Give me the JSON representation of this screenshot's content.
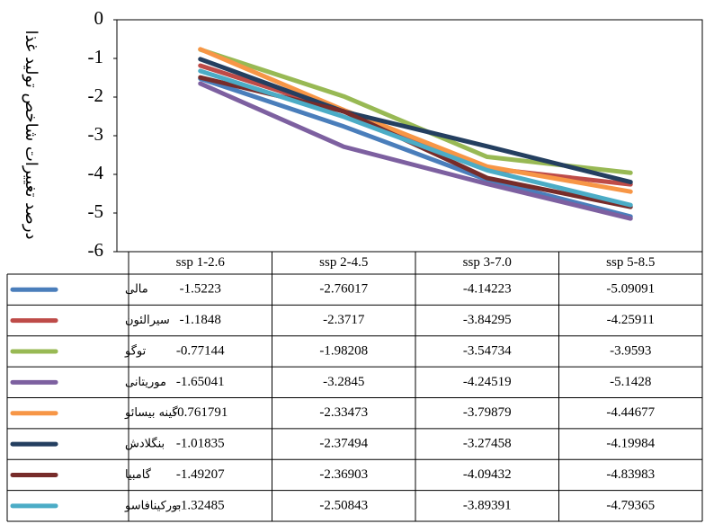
{
  "chart_data": {
    "type": "line",
    "y_label": "درصد تغییرات شاخص تولید غذا",
    "categories": [
      "ssp 1-2.6",
      "ssp 2-4.5",
      "ssp 3-7.0",
      "ssp 5-8.5"
    ],
    "ylim": [
      -6,
      0
    ],
    "yticks": [
      0,
      -1,
      -2,
      -3,
      -4,
      -5,
      -6
    ],
    "series": [
      {
        "name": "مالی",
        "color": "#4a7ebb",
        "values": [
          -1.5223,
          -2.76017,
          -4.14223,
          -5.09091
        ]
      },
      {
        "name": "سیرالئون",
        "color": "#be4b48",
        "values": [
          -1.1848,
          -2.3717,
          -3.84295,
          -4.25911
        ]
      },
      {
        "name": "توگو",
        "color": "#98b954",
        "values": [
          -0.77144,
          -1.98208,
          -3.54734,
          -3.9593
        ]
      },
      {
        "name": "موریتانی",
        "color": "#7d60a0",
        "values": [
          -1.65041,
          -3.2845,
          -4.24519,
          -5.1428
        ]
      },
      {
        "name": "گینه بیسائو",
        "color": "#f79646",
        "values": [
          -0.761791,
          -2.33473,
          -3.79879,
          -4.44677
        ]
      },
      {
        "name": "بنگلادش",
        "color": "#243f60",
        "values": [
          -1.01835,
          -2.37494,
          -3.27458,
          -4.19984
        ]
      },
      {
        "name": "گامبیا",
        "color": "#772c2a",
        "values": [
          -1.49207,
          -2.36903,
          -4.09432,
          -4.83983
        ]
      },
      {
        "name": "بورکینافاسو",
        "color": "#4bacc6",
        "values": [
          -1.32485,
          -2.50843,
          -3.89391,
          -4.79365
        ]
      }
    ]
  }
}
